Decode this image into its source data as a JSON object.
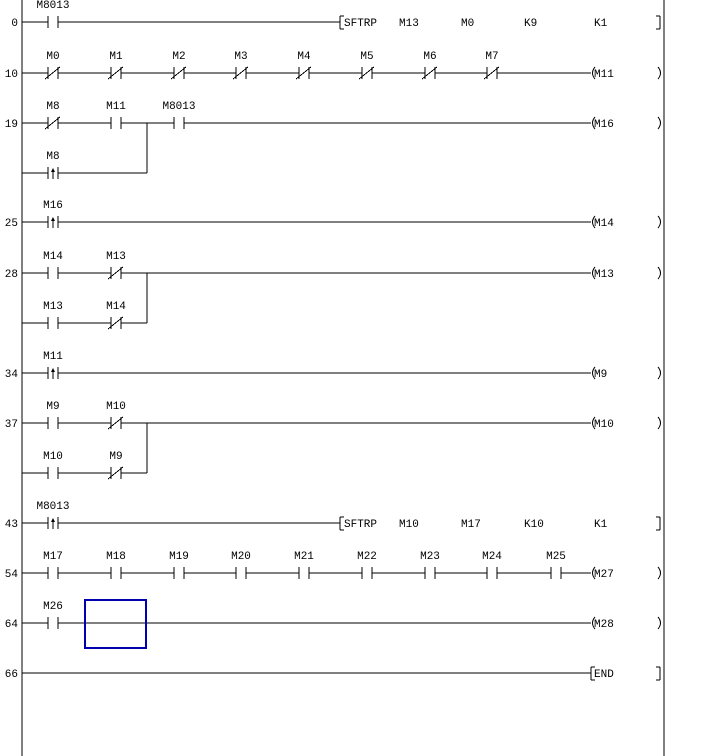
{
  "colors": {
    "line": "#000000",
    "cursor": "#0000b0"
  },
  "rungs": [
    {
      "step": "0",
      "contacts": [
        {
          "label": "M8013",
          "type": "NO"
        }
      ],
      "output": {
        "kind": "instruction",
        "items": [
          "SFTRP",
          "M13",
          "M0",
          "K9",
          "K1"
        ]
      }
    },
    {
      "step": "10",
      "contacts": [
        {
          "label": "M0",
          "type": "NC"
        },
        {
          "label": "M1",
          "type": "NC"
        },
        {
          "label": "M2",
          "type": "NC"
        },
        {
          "label": "M3",
          "type": "NC"
        },
        {
          "label": "M4",
          "type": "NC"
        },
        {
          "label": "M5",
          "type": "NC"
        },
        {
          "label": "M6",
          "type": "NC"
        },
        {
          "label": "M7",
          "type": "NC"
        }
      ],
      "output": {
        "kind": "coil",
        "label": "M11"
      }
    },
    {
      "step": "19",
      "contacts": [
        {
          "label": "M8",
          "type": "NC"
        },
        {
          "label": "M11",
          "type": "NO"
        },
        {
          "label": "M8013",
          "type": "NO"
        }
      ],
      "branch": {
        "contacts": [
          {
            "label": "M8",
            "type": "P"
          }
        ]
      },
      "output": {
        "kind": "coil",
        "label": "M16"
      }
    },
    {
      "step": "25",
      "contacts": [
        {
          "label": "M16",
          "type": "P"
        }
      ],
      "output": {
        "kind": "coil",
        "label": "M14"
      }
    },
    {
      "step": "28",
      "contacts": [
        {
          "label": "M14",
          "type": "NO"
        },
        {
          "label": "M13",
          "type": "NC"
        }
      ],
      "branch": {
        "contacts": [
          {
            "label": "M13",
            "type": "NO"
          },
          {
            "label": "M14",
            "type": "NC"
          }
        ]
      },
      "output": {
        "kind": "coil",
        "label": "M13"
      }
    },
    {
      "step": "34",
      "contacts": [
        {
          "label": "M11",
          "type": "P"
        }
      ],
      "output": {
        "kind": "coil",
        "label": "M9"
      }
    },
    {
      "step": "37",
      "contacts": [
        {
          "label": "M9",
          "type": "NO"
        },
        {
          "label": "M10",
          "type": "NC"
        }
      ],
      "branch": {
        "contacts": [
          {
            "label": "M10",
            "type": "NO"
          },
          {
            "label": "M9",
            "type": "NC"
          }
        ]
      },
      "output": {
        "kind": "coil",
        "label": "M10"
      }
    },
    {
      "step": "43",
      "contacts": [
        {
          "label": "M8013",
          "type": "P"
        }
      ],
      "output": {
        "kind": "instruction",
        "items": [
          "SFTRP",
          "M10",
          "M17",
          "K10",
          "K1"
        ]
      }
    },
    {
      "step": "54",
      "contacts": [
        {
          "label": "M17",
          "type": "NO"
        },
        {
          "label": "M18",
          "type": "NO"
        },
        {
          "label": "M19",
          "type": "NO"
        },
        {
          "label": "M20",
          "type": "NO"
        },
        {
          "label": "M21",
          "type": "NO"
        },
        {
          "label": "M22",
          "type": "NO"
        },
        {
          "label": "M23",
          "type": "NO"
        },
        {
          "label": "M24",
          "type": "NO"
        },
        {
          "label": "M25",
          "type": "NO"
        }
      ],
      "output": {
        "kind": "coil",
        "label": "M27"
      }
    },
    {
      "step": "64",
      "contacts": [
        {
          "label": "M26",
          "type": "NO"
        }
      ],
      "output": {
        "kind": "coil",
        "label": "M28"
      },
      "cursor": true
    },
    {
      "step": "66",
      "contacts": [],
      "output": {
        "kind": "end",
        "label": "END"
      }
    }
  ]
}
